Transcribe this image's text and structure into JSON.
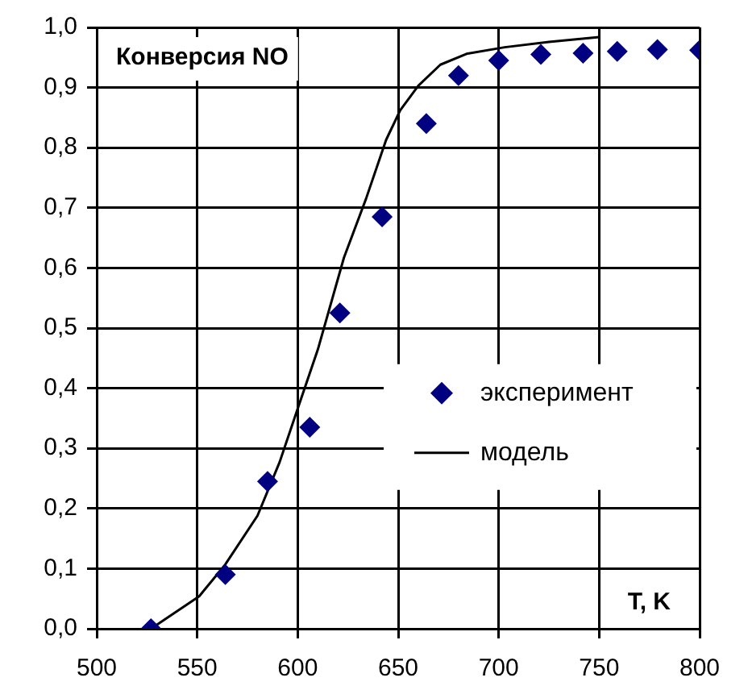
{
  "chart_data": {
    "type": "scatter",
    "title": "Конверсия NO",
    "xlabel": "T, K",
    "xlim": [
      500,
      800
    ],
    "xticks": [
      500,
      550,
      600,
      650,
      700,
      750,
      800
    ],
    "ylim": [
      0,
      1
    ],
    "yticks": [
      {
        "value": 0,
        "label": "0,0"
      },
      {
        "value": 0.1,
        "label": "0,1"
      },
      {
        "value": 0.2,
        "label": "0,2"
      },
      {
        "value": 0.3,
        "label": "0,3"
      },
      {
        "value": 0.4,
        "label": "0,4"
      },
      {
        "value": 0.5,
        "label": "0,5"
      },
      {
        "value": 0.6,
        "label": "0,6"
      },
      {
        "value": 0.7,
        "label": "0,7"
      },
      {
        "value": 0.8,
        "label": "0,8"
      },
      {
        "value": 0.9,
        "label": "0,9"
      },
      {
        "value": 1,
        "label": "1,0"
      }
    ],
    "grid": true,
    "legend": "right",
    "series": [
      {
        "name": "эксперимент",
        "type": "scatter",
        "marker": "diamond",
        "color": "#000080",
        "x": [
          527,
          564,
          585,
          606,
          621,
          642,
          664,
          680,
          700,
          721,
          742,
          759,
          779,
          800
        ],
        "values": [
          0,
          0.09,
          0.245,
          0.335,
          0.525,
          0.685,
          0.84,
          0.92,
          0.945,
          0.955,
          0.957,
          0.96,
          0.963,
          0.962
        ]
      },
      {
        "name": "модель",
        "type": "line",
        "marker": "none",
        "line_style": "solid",
        "color": "#000000",
        "x": [
          527,
          551,
          564,
          580,
          591,
          600,
          610,
          623,
          634,
          644,
          651,
          660,
          671,
          684,
          703,
          725,
          750
        ],
        "values": [
          0,
          0.054,
          0.107,
          0.188,
          0.277,
          0.366,
          0.464,
          0.617,
          0.715,
          0.813,
          0.862,
          0.903,
          0.938,
          0.956,
          0.967,
          0.976,
          0.984
        ]
      }
    ]
  }
}
